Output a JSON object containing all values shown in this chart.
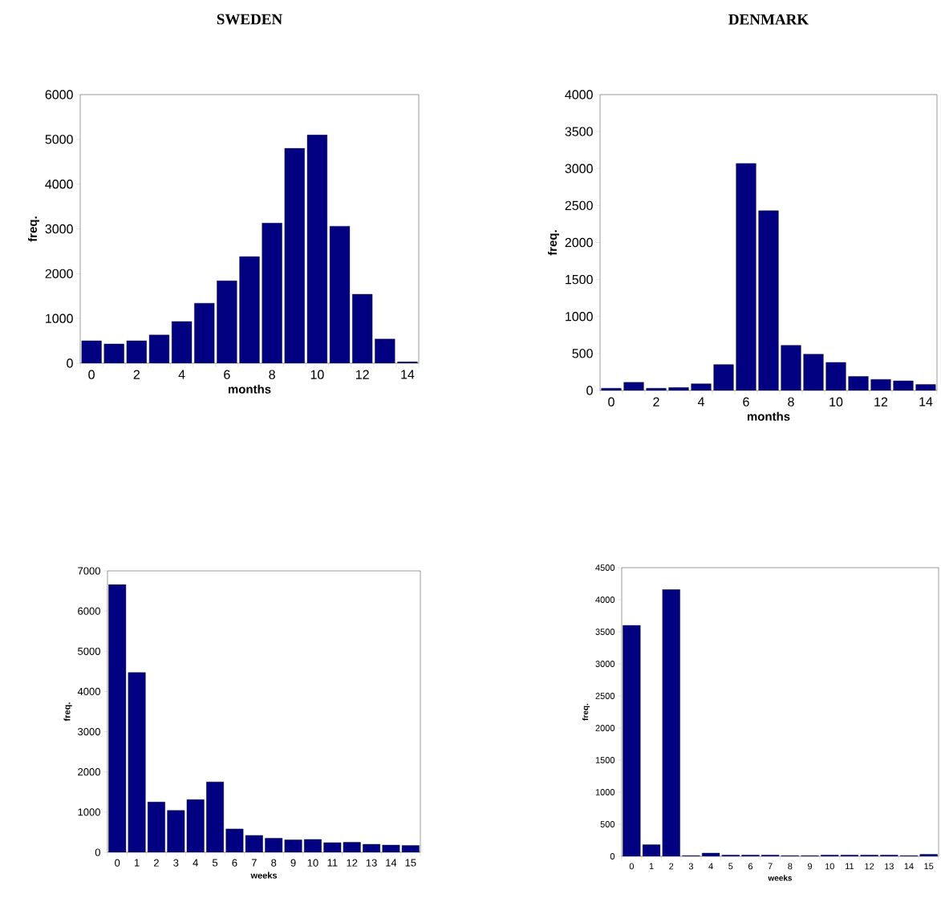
{
  "chart_data": [
    {
      "type": "bar",
      "title": "SWEDEN",
      "xlabel": "months",
      "ylabel": "freq.",
      "categories": [
        "0",
        null,
        "2",
        null,
        "4",
        null,
        "6",
        null,
        "8",
        null,
        "10",
        null,
        "12",
        null,
        "14"
      ],
      "values": [
        500,
        430,
        500,
        630,
        930,
        1340,
        1840,
        2380,
        3130,
        4800,
        5100,
        3060,
        1540,
        540,
        30
      ],
      "color": "#000080",
      "ylim": [
        0,
        6000
      ],
      "yticks": [
        0,
        1000,
        2000,
        3000,
        4000,
        5000,
        6000
      ]
    },
    {
      "type": "bar",
      "title": "DENMARK",
      "xlabel": "months",
      "ylabel": "freq.",
      "categories": [
        "0",
        null,
        "2",
        null,
        "4",
        null,
        "6",
        null,
        "8",
        null,
        "10",
        null,
        "12",
        null,
        "14"
      ],
      "values": [
        30,
        110,
        30,
        40,
        90,
        350,
        3070,
        2430,
        610,
        490,
        380,
        190,
        150,
        130,
        80
      ],
      "color": "#000080",
      "ylim": [
        0,
        4000
      ],
      "yticks": [
        0,
        500,
        1000,
        1500,
        2000,
        2500,
        3000,
        3500,
        4000
      ]
    },
    {
      "type": "bar",
      "xlabel": "weeks",
      "ylabel": "freq.",
      "categories": [
        "0",
        "1",
        "2",
        "3",
        "4",
        "5",
        "6",
        "7",
        "8",
        "9",
        "10",
        "11",
        "12",
        "13",
        "14",
        "15"
      ],
      "values": [
        6660,
        4470,
        1250,
        1040,
        1310,
        1750,
        580,
        420,
        350,
        310,
        320,
        240,
        250,
        200,
        180,
        170
      ],
      "color": "#000080",
      "ylim": [
        0,
        7000
      ],
      "yticks": [
        0,
        1000,
        2000,
        3000,
        4000,
        5000,
        6000,
        7000
      ]
    },
    {
      "type": "bar",
      "xlabel": "weeks",
      "ylabel": "freq.",
      "categories": [
        "0",
        "1",
        "2",
        "3",
        "4",
        "5",
        "6",
        "7",
        "8",
        "9",
        "10",
        "11",
        "12",
        "13",
        "14",
        "15"
      ],
      "values": [
        3600,
        180,
        4160,
        10,
        50,
        20,
        20,
        20,
        10,
        10,
        20,
        20,
        20,
        20,
        10,
        30
      ],
      "color": "#000080",
      "ylim": [
        0,
        4500
      ],
      "yticks": [
        0,
        500,
        1000,
        1500,
        2000,
        2500,
        3000,
        3500,
        4000,
        4500
      ]
    }
  ]
}
